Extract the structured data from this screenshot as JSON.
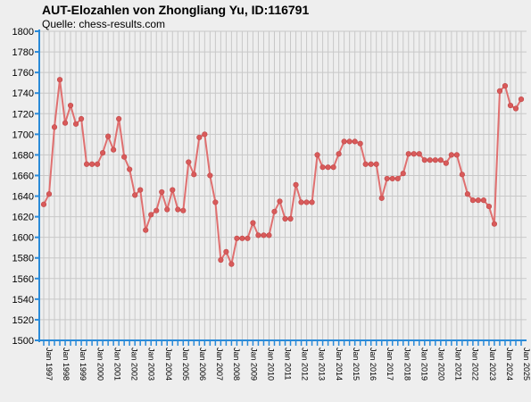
{
  "chart_data": {
    "type": "line",
    "title": "AUT-Elozahlen von Zhongliang Yu, ID:116791",
    "subtitle": "Quelle: chess-results.com",
    "xlabel": "",
    "ylabel": "",
    "ylim": [
      1500,
      1800
    ],
    "yticks": [
      1500,
      1520,
      1540,
      1560,
      1580,
      1600,
      1620,
      1640,
      1660,
      1680,
      1700,
      1720,
      1740,
      1760,
      1780,
      1800
    ],
    "grid": true,
    "legend": "none",
    "colors": {
      "line": "#e07070",
      "point": "#d85a5a",
      "axis": "#2a8ad8",
      "grid": "#c8c8c8",
      "background": "#eeeeee"
    },
    "x_tick_labels": [
      "Jan 1997",
      "Jan 1998",
      "Jan 1999",
      "Jan 2000",
      "Jan 2001",
      "Jan 2002",
      "Jan 2003",
      "Jan 2004",
      "Jan 2005",
      "Jan 2006",
      "Jan 2007",
      "Jan 2008",
      "Jan 2009",
      "Jan 2010",
      "Jan 2011",
      "Jan 2012",
      "Jan 2013",
      "Jan 2014",
      "Jan 2015",
      "Jan 2016",
      "Jan 2017",
      "Jan 2018",
      "Jan 2019",
      "Jan 2020",
      "Jan 2021",
      "Jan 2022",
      "Jan 2023",
      "Jan 2024",
      "Jan 2025"
    ],
    "series": [
      {
        "values": [
          1632,
          1642,
          1707,
          1753,
          1711,
          1728,
          1710,
          1715,
          1671,
          1671,
          1671,
          1682,
          1698,
          1685,
          1715,
          1678,
          1666,
          1641,
          1646,
          1607,
          1622,
          1626,
          1644,
          1627,
          1646,
          1627,
          1626,
          1673,
          1661,
          1697,
          1700,
          1660,
          1634,
          1578,
          1586,
          1574,
          1599,
          1599,
          1599,
          1614,
          1602,
          1602,
          1602,
          1625,
          1635,
          1618,
          1618,
          1651,
          1634,
          1634,
          1634,
          1680,
          1668,
          1668,
          1668,
          1681,
          1693,
          1693,
          1693,
          1691,
          1671,
          1671,
          1671,
          1638,
          1657,
          1657,
          1657,
          1662,
          1681,
          1681,
          1681,
          1675,
          1675,
          1675,
          1675,
          1672,
          1680,
          1680,
          1661,
          1642,
          1636,
          1636,
          1636,
          1630,
          1613,
          1742,
          1747,
          1728,
          1725,
          1734
        ]
      }
    ]
  }
}
